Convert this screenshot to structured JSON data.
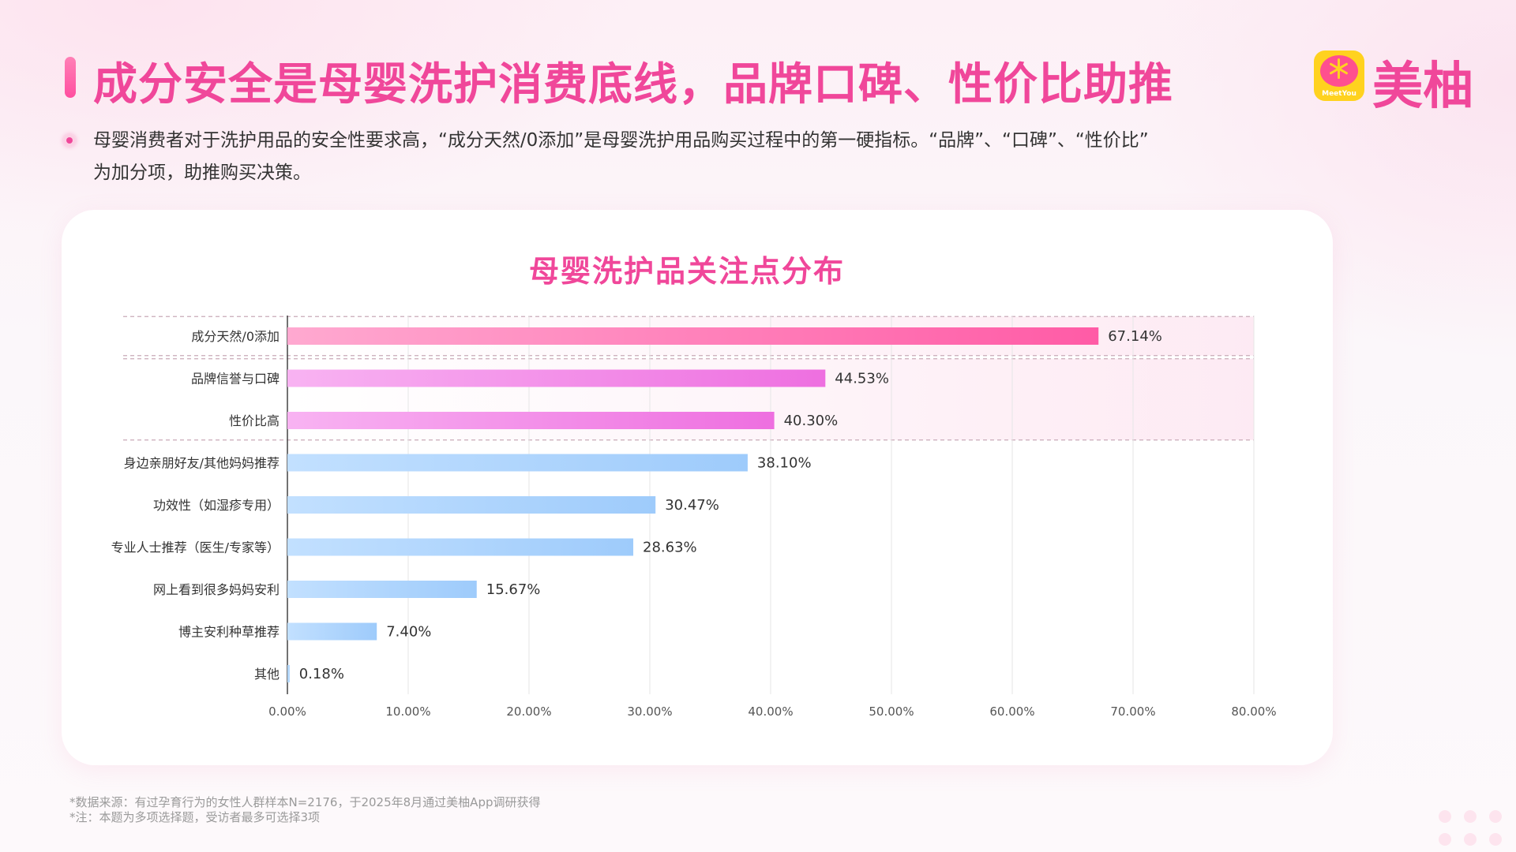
{
  "header": {
    "title": "成分安全是母婴洗护消费底线，品牌口碑、性价比助推",
    "logo_text": "美柚",
    "logo_sub": "MeetYou"
  },
  "summary": {
    "line1": "母婴消费者对于洗护用品的安全性要求高，“成分天然/0添加”是母婴洗护用品购买过程中的第一硬指标。“品牌”、“口碑”、“性价比”",
    "line2": "为加分项，助推购买决策。"
  },
  "chart_data": {
    "type": "bar",
    "orientation": "horizontal",
    "title": "母婴洗护品关注点分布",
    "categories": [
      "成分天然/0添加",
      "品牌信誉与口碑",
      "性价比高",
      "身边亲朋好友/其他妈妈推荐",
      "功效性（如湿疹专用）",
      "专业人士推荐（医生/专家等）",
      "网上看到很多妈妈安利",
      "博主安利种草推荐",
      "其他"
    ],
    "values": [
      67.14,
      44.53,
      40.3,
      38.1,
      30.47,
      28.63,
      15.67,
      7.4,
      0.18
    ],
    "value_labels": [
      "67.14%",
      "44.53%",
      "40.30%",
      "38.10%",
      "30.47%",
      "28.63%",
      "15.67%",
      "7.40%",
      "0.18%"
    ],
    "xlim": [
      0,
      80
    ],
    "x_ticks": [
      "0.00%",
      "10.00%",
      "20.00%",
      "30.00%",
      "40.00%",
      "50.00%",
      "60.00%",
      "70.00%",
      "80.00%"
    ],
    "highlight_groups": [
      [
        0
      ],
      [
        1,
        2
      ]
    ],
    "colors": {
      "pink_bar_start": "#ffa9d0",
      "pink_bar_end": "#ff5ba6",
      "violet_bar_start": "#f8b3f2",
      "violet_bar_end": "#ee6fe0",
      "blue_bar_start": "#c2e0ff",
      "blue_bar_end": "#9ecbfb",
      "highlight_band": "#fde8f2"
    },
    "grid": true
  },
  "footnotes": {
    "source": "*数据来源：有过孕育行为的女性人群样本N=2176，于2025年8月通过美柚App调研获得",
    "note": "*注：本题为多项选择题，受访者最多可选择3项"
  }
}
